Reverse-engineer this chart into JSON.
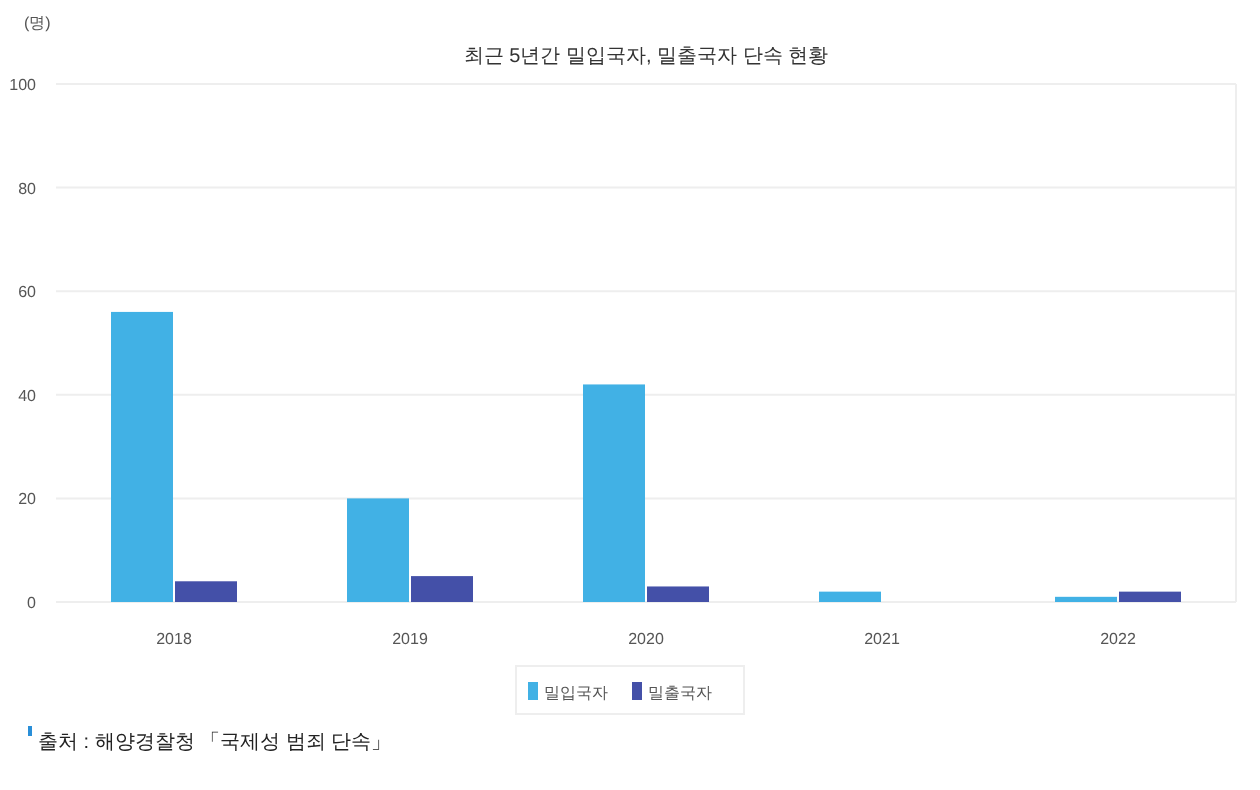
{
  "chart_data": {
    "type": "bar",
    "title": "최근 5년간 밀입국자, 밀출국자 단속 현황",
    "ylabel": "(명)",
    "categories": [
      "2018",
      "2019",
      "2020",
      "2021",
      "2022"
    ],
    "series": [
      {
        "name": "밀입국자",
        "color": "#41b1e5",
        "values": [
          56,
          20,
          42,
          2,
          1
        ]
      },
      {
        "name": "밀출국자",
        "color": "#4450a8",
        "values": [
          4,
          5,
          3,
          0,
          2
        ]
      }
    ],
    "ylim": [
      0,
      100
    ],
    "yticks": [
      0,
      20,
      40,
      60,
      80,
      100
    ],
    "grid": "y",
    "legend": "bottom",
    "annotations": [
      "출처 : 해양경찰청 「국제성 범죄 단속」"
    ]
  }
}
